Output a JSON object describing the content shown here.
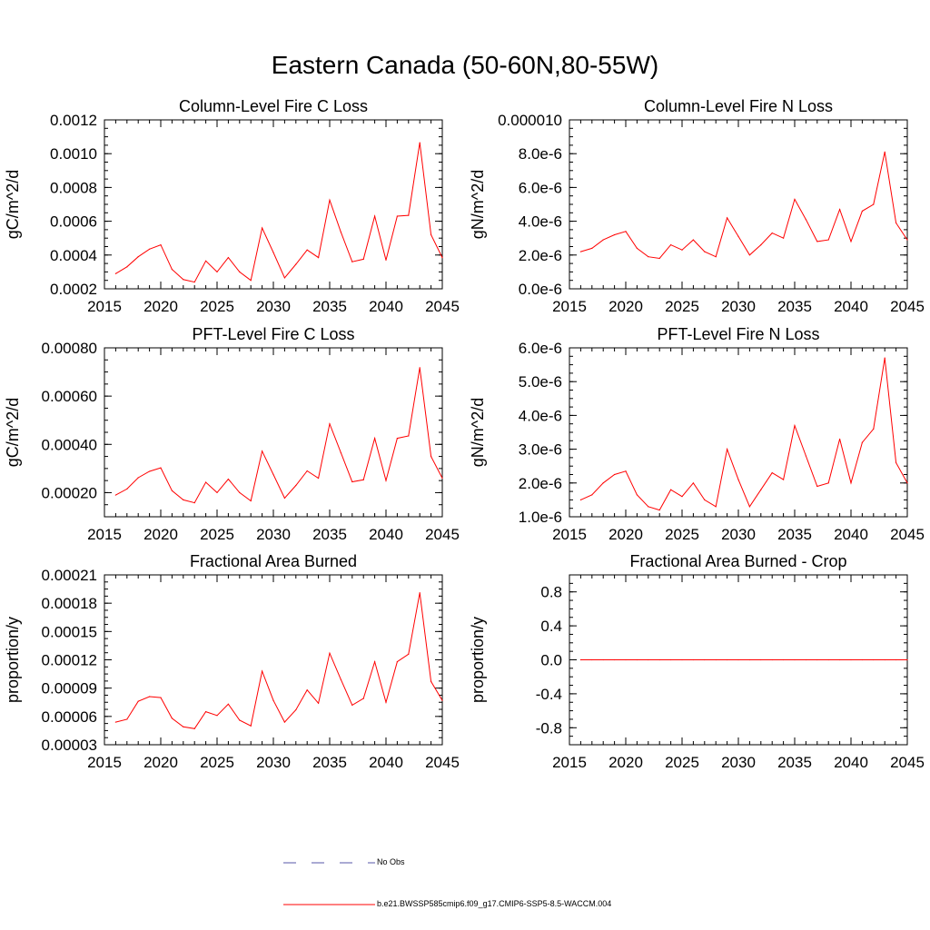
{
  "figure": {
    "title": "Eastern Canada (50-60N,80-55W)"
  },
  "legend": {
    "entries": [
      {
        "label": "No Obs",
        "style": "dashed",
        "color": "#5555aa"
      },
      {
        "label": "b.e21.BWSSP585cmip6.f09_g17.CMIP6-SSP5-8.5-WACCM.004",
        "style": "solid",
        "color": "#ff0000"
      }
    ]
  },
  "chart_data": [
    {
      "id": "col-fire-c",
      "type": "line",
      "title": "Column-Level Fire C Loss",
      "ylabel": "gC/m^2/d",
      "xlim": [
        2015,
        2045
      ],
      "ylim": [
        0.0002,
        0.0012
      ],
      "xticks": [
        2015,
        2020,
        2025,
        2030,
        2035,
        2040,
        2045
      ],
      "xtick_labels": [
        "2015",
        "2020",
        "2025",
        "2030",
        "2035",
        "2040",
        "2045"
      ],
      "yticks": [
        0.0002,
        0.0004,
        0.0006,
        0.0008,
        0.001,
        0.0012
      ],
      "ytick_labels": [
        "0.0002",
        "0.0004",
        "0.0006",
        "0.0008",
        "0.0010",
        "0.0012"
      ],
      "color": "#ff0000",
      "x": [
        2016,
        2017,
        2018,
        2019,
        2020,
        2021,
        2022,
        2023,
        2024,
        2025,
        2026,
        2027,
        2028,
        2029,
        2030,
        2031,
        2032,
        2033,
        2034,
        2035,
        2036,
        2037,
        2038,
        2039,
        2040,
        2041,
        2042,
        2043,
        2044,
        2045
      ],
      "y": [
        0.00029,
        0.00033,
        0.00039,
        0.000435,
        0.00046,
        0.000315,
        0.000255,
        0.00024,
        0.000365,
        0.0003,
        0.000385,
        0.0003,
        0.00025,
        0.00056,
        0.000415,
        0.000265,
        0.000345,
        0.00043,
        0.000385,
        0.000725,
        0.000535,
        0.00036,
        0.000375,
        0.00063,
        0.00037,
        0.00063,
        0.000635,
        0.001065,
        0.00052,
        0.000385
      ]
    },
    {
      "id": "col-fire-n",
      "type": "line",
      "title": "Column-Level Fire N Loss",
      "ylabel": "gN/m^2/d",
      "xlim": [
        2015,
        2045
      ],
      "ylim": [
        0,
        1e-05
      ],
      "xticks": [
        2015,
        2020,
        2025,
        2030,
        2035,
        2040,
        2045
      ],
      "xtick_labels": [
        "2015",
        "2020",
        "2025",
        "2030",
        "2035",
        "2040",
        "2045"
      ],
      "yticks": [
        0,
        2e-06,
        4e-06,
        6e-06,
        8e-06,
        1e-05
      ],
      "ytick_labels": [
        "0.0e-6",
        "2.0e-6",
        "4.0e-6",
        "6.0e-6",
        "8.0e-6",
        "0.000010"
      ],
      "color": "#ff0000",
      "x": [
        2016,
        2017,
        2018,
        2019,
        2020,
        2021,
        2022,
        2023,
        2024,
        2025,
        2026,
        2027,
        2028,
        2029,
        2030,
        2031,
        2032,
        2033,
        2034,
        2035,
        2036,
        2037,
        2038,
        2039,
        2040,
        2041,
        2042,
        2043,
        2044,
        2045
      ],
      "y": [
        2.2e-06,
        2.4e-06,
        2.9e-06,
        3.2e-06,
        3.4e-06,
        2.4e-06,
        1.9e-06,
        1.8e-06,
        2.6e-06,
        2.3e-06,
        2.9e-06,
        2.2e-06,
        1.9e-06,
        4.2e-06,
        3.1e-06,
        2e-06,
        2.6e-06,
        3.3e-06,
        3e-06,
        5.3e-06,
        4.1e-06,
        2.8e-06,
        2.9e-06,
        4.7e-06,
        2.8e-06,
        4.6e-06,
        5e-06,
        8.1e-06,
        3.9e-06,
        2.9e-06
      ]
    },
    {
      "id": "pft-fire-c",
      "type": "line",
      "title": "PFT-Level Fire C Loss",
      "ylabel": "gC/m^2/d",
      "xlim": [
        2015,
        2045
      ],
      "ylim": [
        0.0001,
        0.0008
      ],
      "xticks": [
        2015,
        2020,
        2025,
        2030,
        2035,
        2040,
        2045
      ],
      "xtick_labels": [
        "2015",
        "2020",
        "2025",
        "2030",
        "2035",
        "2040",
        "2045"
      ],
      "yticks": [
        0.0002,
        0.0004,
        0.0006,
        0.0008
      ],
      "ytick_labels": [
        "0.00020",
        "0.00040",
        "0.00060",
        "0.00080"
      ],
      "color": "#ff0000",
      "x": [
        2016,
        2017,
        2018,
        2019,
        2020,
        2021,
        2022,
        2023,
        2024,
        2025,
        2026,
        2027,
        2028,
        2029,
        2030,
        2031,
        2032,
        2033,
        2034,
        2035,
        2036,
        2037,
        2038,
        2039,
        2040,
        2041,
        2042,
        2043,
        2044,
        2045
      ],
      "y": [
        0.00019,
        0.000215,
        0.000262,
        0.000288,
        0.000303,
        0.000208,
        0.00017,
        0.000158,
        0.000243,
        0.0002,
        0.000256,
        0.0002,
        0.000166,
        0.000372,
        0.000275,
        0.000177,
        0.00023,
        0.00029,
        0.00026,
        0.000485,
        0.000365,
        0.000245,
        0.000253,
        0.000425,
        0.00025,
        0.000425,
        0.000435,
        0.000718,
        0.00035,
        0.00026
      ]
    },
    {
      "id": "pft-fire-n",
      "type": "line",
      "title": "PFT-Level Fire N Loss",
      "ylabel": "gN/m^2/d",
      "xlim": [
        2015,
        2045
      ],
      "ylim": [
        1e-06,
        6e-06
      ],
      "xticks": [
        2015,
        2020,
        2025,
        2030,
        2035,
        2040,
        2045
      ],
      "xtick_labels": [
        "2015",
        "2020",
        "2025",
        "2030",
        "2035",
        "2040",
        "2045"
      ],
      "yticks": [
        1e-06,
        2e-06,
        3e-06,
        4e-06,
        5e-06,
        6e-06
      ],
      "ytick_labels": [
        "1.0e-6",
        "2.0e-6",
        "3.0e-6",
        "4.0e-6",
        "5.0e-6",
        "6.0e-6"
      ],
      "color": "#ff0000",
      "x": [
        2016,
        2017,
        2018,
        2019,
        2020,
        2021,
        2022,
        2023,
        2024,
        2025,
        2026,
        2027,
        2028,
        2029,
        2030,
        2031,
        2032,
        2033,
        2034,
        2035,
        2036,
        2037,
        2038,
        2039,
        2040,
        2041,
        2042,
        2043,
        2044,
        2045
      ],
      "y": [
        1.5e-06,
        1.65e-06,
        2e-06,
        2.25e-06,
        2.35e-06,
        1.65e-06,
        1.3e-06,
        1.2e-06,
        1.8e-06,
        1.6e-06,
        2e-06,
        1.5e-06,
        1.3e-06,
        3e-06,
        2.1e-06,
        1.3e-06,
        1.8e-06,
        2.3e-06,
        2.1e-06,
        3.7e-06,
        2.8e-06,
        1.9e-06,
        2e-06,
        3.3e-06,
        2e-06,
        3.2e-06,
        3.6e-06,
        5.7e-06,
        2.6e-06,
        2e-06
      ]
    },
    {
      "id": "frac-area",
      "type": "line",
      "title": "Fractional Area Burned",
      "ylabel": "proportion/y",
      "xlim": [
        2015,
        2045
      ],
      "ylim": [
        3e-05,
        0.00021
      ],
      "xticks": [
        2015,
        2020,
        2025,
        2030,
        2035,
        2040,
        2045
      ],
      "xtick_labels": [
        "2015",
        "2020",
        "2025",
        "2030",
        "2035",
        "2040",
        "2045"
      ],
      "yticks": [
        3e-05,
        6e-05,
        9e-05,
        0.00012,
        0.00015,
        0.00018,
        0.00021
      ],
      "ytick_labels": [
        "0.00003",
        "0.00006",
        "0.00009",
        "0.00012",
        "0.00015",
        "0.00018",
        "0.00021"
      ],
      "color": "#ff0000",
      "x": [
        2016,
        2017,
        2018,
        2019,
        2020,
        2021,
        2022,
        2023,
        2024,
        2025,
        2026,
        2027,
        2028,
        2029,
        2030,
        2031,
        2032,
        2033,
        2034,
        2035,
        2036,
        2037,
        2038,
        2039,
        2040,
        2041,
        2042,
        2043,
        2044,
        2045
      ],
      "y": [
        5.4e-05,
        5.7e-05,
        7.6e-05,
        8.1e-05,
        8e-05,
        5.8e-05,
        4.9e-05,
        4.7e-05,
        6.5e-05,
        6.1e-05,
        7.3e-05,
        5.6e-05,
        5e-05,
        0.000108,
        7.7e-05,
        5.4e-05,
        6.7e-05,
        8.8e-05,
        7.4e-05,
        0.000127,
        9.9e-05,
        7.2e-05,
        7.9e-05,
        0.000118,
        7.5e-05,
        0.000118,
        0.000126,
        0.000191,
        9.7e-05,
        7.7e-05
      ]
    },
    {
      "id": "frac-area-crop",
      "type": "line",
      "title": "Fractional Area Burned - Crop",
      "ylabel": "proportion/y",
      "xlim": [
        2015,
        2045
      ],
      "ylim": [
        -1.0,
        1.0
      ],
      "xticks": [
        2015,
        2020,
        2025,
        2030,
        2035,
        2040,
        2045
      ],
      "xtick_labels": [
        "2015",
        "2020",
        "2025",
        "2030",
        "2035",
        "2040",
        "2045"
      ],
      "yticks": [
        -0.8,
        -0.4,
        0.0,
        0.4,
        0.8
      ],
      "ytick_labels": [
        "-0.8",
        "-0.4",
        "0.0",
        "0.4",
        "0.8"
      ],
      "color": "#ff0000",
      "x": [
        2016,
        2017,
        2018,
        2019,
        2020,
        2021,
        2022,
        2023,
        2024,
        2025,
        2026,
        2027,
        2028,
        2029,
        2030,
        2031,
        2032,
        2033,
        2034,
        2035,
        2036,
        2037,
        2038,
        2039,
        2040,
        2041,
        2042,
        2043,
        2044,
        2045
      ],
      "y": [
        0,
        0,
        0,
        0,
        0,
        0,
        0,
        0,
        0,
        0,
        0,
        0,
        0,
        0,
        0,
        0,
        0,
        0,
        0,
        0,
        0,
        0,
        0,
        0,
        0,
        0,
        0,
        0,
        0,
        0
      ]
    }
  ]
}
